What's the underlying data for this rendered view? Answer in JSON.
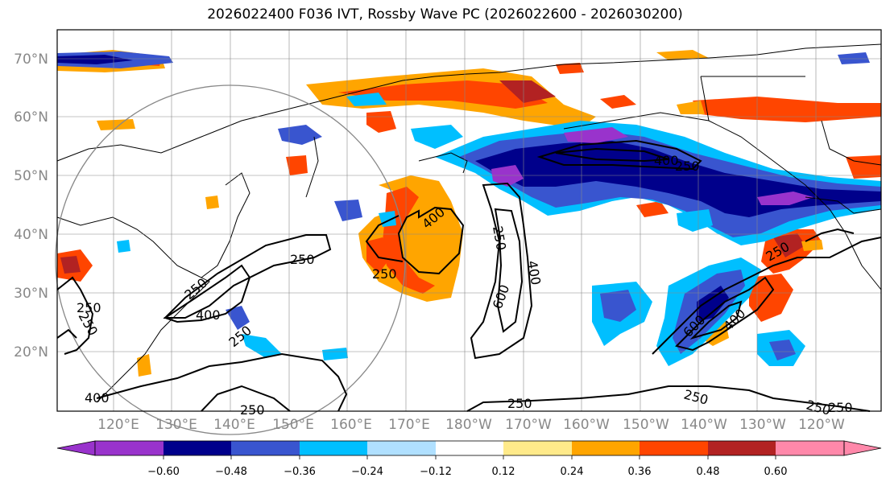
{
  "title": "2026022400 F036 IVT, Rossby Wave PC (2026022600 - 2026030200)",
  "map": {
    "lat_labels": [
      "70°N",
      "60°N",
      "50°N",
      "40°N",
      "30°N",
      "20°N"
    ],
    "lon_labels": [
      "120°E",
      "130°E",
      "140°E",
      "150°E",
      "160°E",
      "170°E",
      "180°W",
      "170°W",
      "160°W",
      "150°W",
      "140°W",
      "130°W",
      "120°W"
    ],
    "contour_labels": [
      "250",
      "250",
      "250",
      "250",
      "400",
      "250",
      "400",
      "250",
      "250",
      "400",
      "400",
      "250",
      "400",
      "600",
      "250",
      "250",
      "600",
      "400",
      "250",
      "250",
      "250",
      "250"
    ]
  },
  "colorbar": {
    "colors": [
      "#9933cc",
      "#00008b",
      "#3955cf",
      "#00bfff",
      "#b0e0ff",
      "#ffffff",
      "#ffea8a",
      "#ffa500",
      "#ff4500",
      "#b22222",
      "#ff88aa"
    ],
    "tick_labels": [
      "−0.60",
      "−0.48",
      "−0.36",
      "−0.24",
      "−0.12",
      "0.12",
      "0.24",
      "0.36",
      "0.48",
      "0.60"
    ]
  }
}
